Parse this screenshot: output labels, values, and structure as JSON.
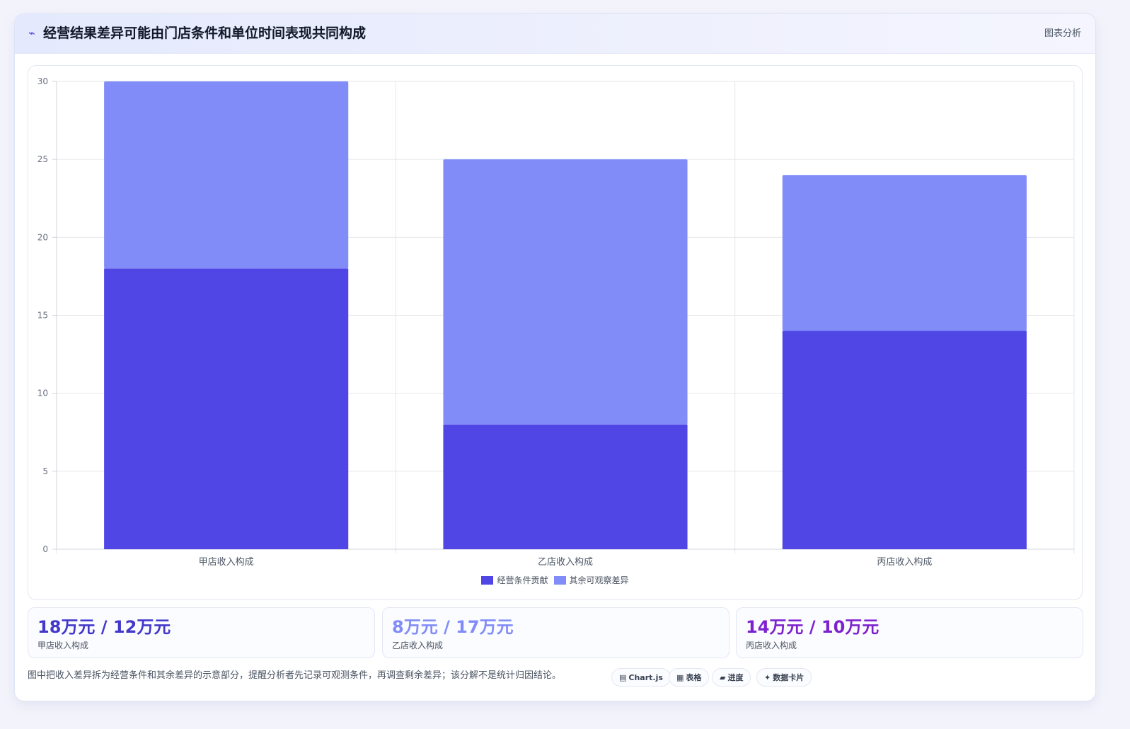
{
  "header": {
    "icon": "chart-line-icon",
    "icon_glyph": "⌁",
    "title": "经营结果差异可能由门店条件和单位时间表现共同构成",
    "tag": "图表分析"
  },
  "chart_data": {
    "type": "bar",
    "stacked": true,
    "categories": [
      "甲店收入构成",
      "乙店收入构成",
      "丙店收入构成"
    ],
    "series": [
      {
        "name": "经营条件贡献",
        "values": [
          18,
          8,
          14
        ],
        "color": "#4f46e5"
      },
      {
        "name": "其余可观察差异",
        "values": [
          12,
          17,
          10
        ],
        "color": "#818cf8"
      }
    ],
    "ylim": [
      0,
      30
    ],
    "yticks": [
      0,
      5,
      10,
      15,
      20,
      25,
      30
    ],
    "grid": true,
    "legend": "bottom"
  },
  "stats": [
    {
      "value": "18万元 / 12万元",
      "label": "甲店收入构成",
      "color": "#4338ca"
    },
    {
      "value": "8万元 / 17万元",
      "label": "乙店收入构成",
      "color": "#818cf8"
    },
    {
      "value": "14万元 / 10万元",
      "label": "丙店收入构成",
      "color": "#7e22ce"
    }
  ],
  "footnote": "图中把收入差异拆为经营条件和其余差异的示意部分，提醒分析者先记录可观测条件，再调查剩余差异；该分解不是统计归因结论。",
  "chips": [
    {
      "icon": "chart-icon",
      "glyph": "▤",
      "label": "Chart.js"
    },
    {
      "icon": "table-icon",
      "glyph": "▦",
      "label": "表格"
    },
    {
      "icon": "progress-icon",
      "glyph": "▰",
      "label": "进度"
    },
    {
      "icon": "sparkle-icon",
      "glyph": "✦",
      "label": "数据卡片"
    }
  ]
}
